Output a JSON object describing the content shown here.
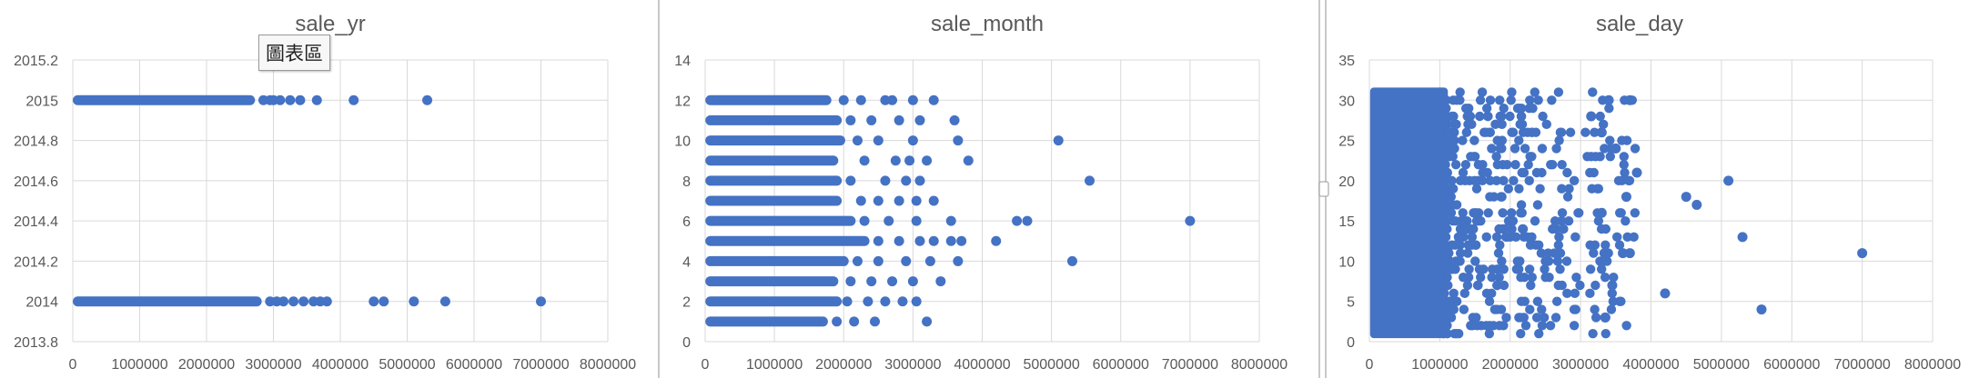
{
  "colors": {
    "points": "#4472C4",
    "grid": "#d9d9d9",
    "text": "#595959",
    "title": "#595959",
    "separator": "#c8c8c8"
  },
  "tooltip": {
    "text": "圖表區"
  },
  "chart_data": [
    {
      "type": "scatter",
      "title": "sale_yr",
      "xlim": [
        0,
        8000000
      ],
      "xticks": [
        "0",
        "1000000",
        "2000000",
        "3000000",
        "4000000",
        "5000000",
        "6000000",
        "7000000",
        "8000000"
      ],
      "ylim": [
        2013.8,
        2015.2
      ],
      "yticks": [
        "2013.8",
        "2014",
        "2014.2",
        "2014.4",
        "2014.6",
        "2014.8",
        "2015",
        "2015.2"
      ],
      "grid": true,
      "dense": [
        {
          "y": 2015,
          "x_from": 75000,
          "x_to": 2650000
        },
        {
          "y": 2014,
          "x_from": 75000,
          "x_to": 2750000
        }
      ],
      "points": [
        {
          "x": 2850000,
          "y": 2015
        },
        {
          "x": 2950000,
          "y": 2015
        },
        {
          "x": 3000000,
          "y": 2015
        },
        {
          "x": 3100000,
          "y": 2015
        },
        {
          "x": 3250000,
          "y": 2015
        },
        {
          "x": 3400000,
          "y": 2015
        },
        {
          "x": 3650000,
          "y": 2015
        },
        {
          "x": 4200000,
          "y": 2015
        },
        {
          "x": 5300000,
          "y": 2015
        },
        {
          "x": 2950000,
          "y": 2014
        },
        {
          "x": 3050000,
          "y": 2014
        },
        {
          "x": 3150000,
          "y": 2014
        },
        {
          "x": 3300000,
          "y": 2014
        },
        {
          "x": 3450000,
          "y": 2014
        },
        {
          "x": 3600000,
          "y": 2014
        },
        {
          "x": 3700000,
          "y": 2014
        },
        {
          "x": 3800000,
          "y": 2014
        },
        {
          "x": 4500000,
          "y": 2014
        },
        {
          "x": 4650000,
          "y": 2014
        },
        {
          "x": 5100000,
          "y": 2014
        },
        {
          "x": 5570000,
          "y": 2014
        },
        {
          "x": 7000000,
          "y": 2014
        }
      ]
    },
    {
      "type": "scatter",
      "title": "sale_month",
      "xlim": [
        0,
        8000000
      ],
      "xticks": [
        "0",
        "1000000",
        "2000000",
        "3000000",
        "4000000",
        "5000000",
        "6000000",
        "7000000",
        "8000000"
      ],
      "ylim": [
        0,
        14
      ],
      "yticks": [
        "0",
        "2",
        "4",
        "6",
        "8",
        "10",
        "12",
        "14"
      ],
      "grid": true,
      "dense": [
        {
          "y": 1,
          "x_from": 75000,
          "x_to": 1700000
        },
        {
          "y": 2,
          "x_from": 75000,
          "x_to": 1900000
        },
        {
          "y": 3,
          "x_from": 75000,
          "x_to": 1850000
        },
        {
          "y": 4,
          "x_from": 75000,
          "x_to": 2000000
        },
        {
          "y": 5,
          "x_from": 75000,
          "x_to": 2300000
        },
        {
          "y": 6,
          "x_from": 75000,
          "x_to": 2100000
        },
        {
          "y": 7,
          "x_from": 75000,
          "x_to": 1900000
        },
        {
          "y": 8,
          "x_from": 75000,
          "x_to": 1900000
        },
        {
          "y": 9,
          "x_from": 75000,
          "x_to": 1850000
        },
        {
          "y": 10,
          "x_from": 75000,
          "x_to": 1950000
        },
        {
          "y": 11,
          "x_from": 75000,
          "x_to": 1900000
        },
        {
          "y": 12,
          "x_from": 75000,
          "x_to": 1750000
        }
      ],
      "points": [
        {
          "x": 2000000,
          "y": 12
        },
        {
          "x": 2250000,
          "y": 12
        },
        {
          "x": 2600000,
          "y": 12
        },
        {
          "x": 2700000,
          "y": 12
        },
        {
          "x": 3000000,
          "y": 12
        },
        {
          "x": 3300000,
          "y": 12
        },
        {
          "x": 2100000,
          "y": 11
        },
        {
          "x": 2400000,
          "y": 11
        },
        {
          "x": 2800000,
          "y": 11
        },
        {
          "x": 3100000,
          "y": 11
        },
        {
          "x": 3600000,
          "y": 11
        },
        {
          "x": 2200000,
          "y": 10
        },
        {
          "x": 2500000,
          "y": 10
        },
        {
          "x": 3000000,
          "y": 10
        },
        {
          "x": 3650000,
          "y": 10
        },
        {
          "x": 5100000,
          "y": 10
        },
        {
          "x": 2300000,
          "y": 9
        },
        {
          "x": 2750000,
          "y": 9
        },
        {
          "x": 2950000,
          "y": 9
        },
        {
          "x": 3200000,
          "y": 9
        },
        {
          "x": 3800000,
          "y": 9
        },
        {
          "x": 2100000,
          "y": 8
        },
        {
          "x": 2600000,
          "y": 8
        },
        {
          "x": 2900000,
          "y": 8
        },
        {
          "x": 3100000,
          "y": 8
        },
        {
          "x": 5550000,
          "y": 8
        },
        {
          "x": 2250000,
          "y": 7
        },
        {
          "x": 2500000,
          "y": 7
        },
        {
          "x": 2800000,
          "y": 7
        },
        {
          "x": 3050000,
          "y": 7
        },
        {
          "x": 3300000,
          "y": 7
        },
        {
          "x": 2300000,
          "y": 6
        },
        {
          "x": 2650000,
          "y": 6
        },
        {
          "x": 3050000,
          "y": 6
        },
        {
          "x": 3550000,
          "y": 6
        },
        {
          "x": 4500000,
          "y": 6
        },
        {
          "x": 4650000,
          "y": 6
        },
        {
          "x": 7000000,
          "y": 6
        },
        {
          "x": 2500000,
          "y": 5
        },
        {
          "x": 2800000,
          "y": 5
        },
        {
          "x": 3100000,
          "y": 5
        },
        {
          "x": 3300000,
          "y": 5
        },
        {
          "x": 3550000,
          "y": 5
        },
        {
          "x": 3700000,
          "y": 5
        },
        {
          "x": 4200000,
          "y": 5
        },
        {
          "x": 2200000,
          "y": 4
        },
        {
          "x": 2500000,
          "y": 4
        },
        {
          "x": 2900000,
          "y": 4
        },
        {
          "x": 3250000,
          "y": 4
        },
        {
          "x": 3650000,
          "y": 4
        },
        {
          "x": 5300000,
          "y": 4
        },
        {
          "x": 2100000,
          "y": 3
        },
        {
          "x": 2400000,
          "y": 3
        },
        {
          "x": 2700000,
          "y": 3
        },
        {
          "x": 3000000,
          "y": 3
        },
        {
          "x": 3400000,
          "y": 3
        },
        {
          "x": 2050000,
          "y": 2
        },
        {
          "x": 2350000,
          "y": 2
        },
        {
          "x": 2600000,
          "y": 2
        },
        {
          "x": 2850000,
          "y": 2
        },
        {
          "x": 3050000,
          "y": 2
        },
        {
          "x": 1900000,
          "y": 1
        },
        {
          "x": 2150000,
          "y": 1
        },
        {
          "x": 2450000,
          "y": 1
        },
        {
          "x": 3200000,
          "y": 1
        }
      ]
    },
    {
      "type": "scatter",
      "title": "sale_day",
      "xlim": [
        0,
        8000000
      ],
      "xticks": [
        "0",
        "1000000",
        "2000000",
        "3000000",
        "4000000",
        "5000000",
        "6000000",
        "7000000",
        "8000000"
      ],
      "ylim": [
        0,
        35
      ],
      "yticks": [
        "0",
        "5",
        "10",
        "15",
        "20",
        "25",
        "30",
        "35"
      ],
      "grid": true,
      "dense_block": {
        "x_from": 75000,
        "x_to": 1050000,
        "y_from": 1,
        "y_to": 31
      },
      "scatter_cloud": {
        "x_from": 1000000,
        "x_to": 3800000,
        "y_from": 1,
        "y_to": 31,
        "count": 520,
        "decay": 2.2
      },
      "points": [
        {
          "x": 3400000,
          "y": 30
        },
        {
          "x": 3700000,
          "y": 30
        },
        {
          "x": 3150000,
          "y": 28
        },
        {
          "x": 3300000,
          "y": 26
        },
        {
          "x": 3500000,
          "y": 24
        },
        {
          "x": 3800000,
          "y": 21
        },
        {
          "x": 3650000,
          "y": 18
        },
        {
          "x": 3300000,
          "y": 16
        },
        {
          "x": 3700000,
          "y": 11
        },
        {
          "x": 3600000,
          "y": 11
        },
        {
          "x": 3450000,
          "y": 7
        },
        {
          "x": 3350000,
          "y": 3
        },
        {
          "x": 4200000,
          "y": 6
        },
        {
          "x": 4500000,
          "y": 18
        },
        {
          "x": 4650000,
          "y": 17
        },
        {
          "x": 5100000,
          "y": 20
        },
        {
          "x": 5300000,
          "y": 13
        },
        {
          "x": 5570000,
          "y": 4
        },
        {
          "x": 7000000,
          "y": 11
        }
      ]
    }
  ]
}
